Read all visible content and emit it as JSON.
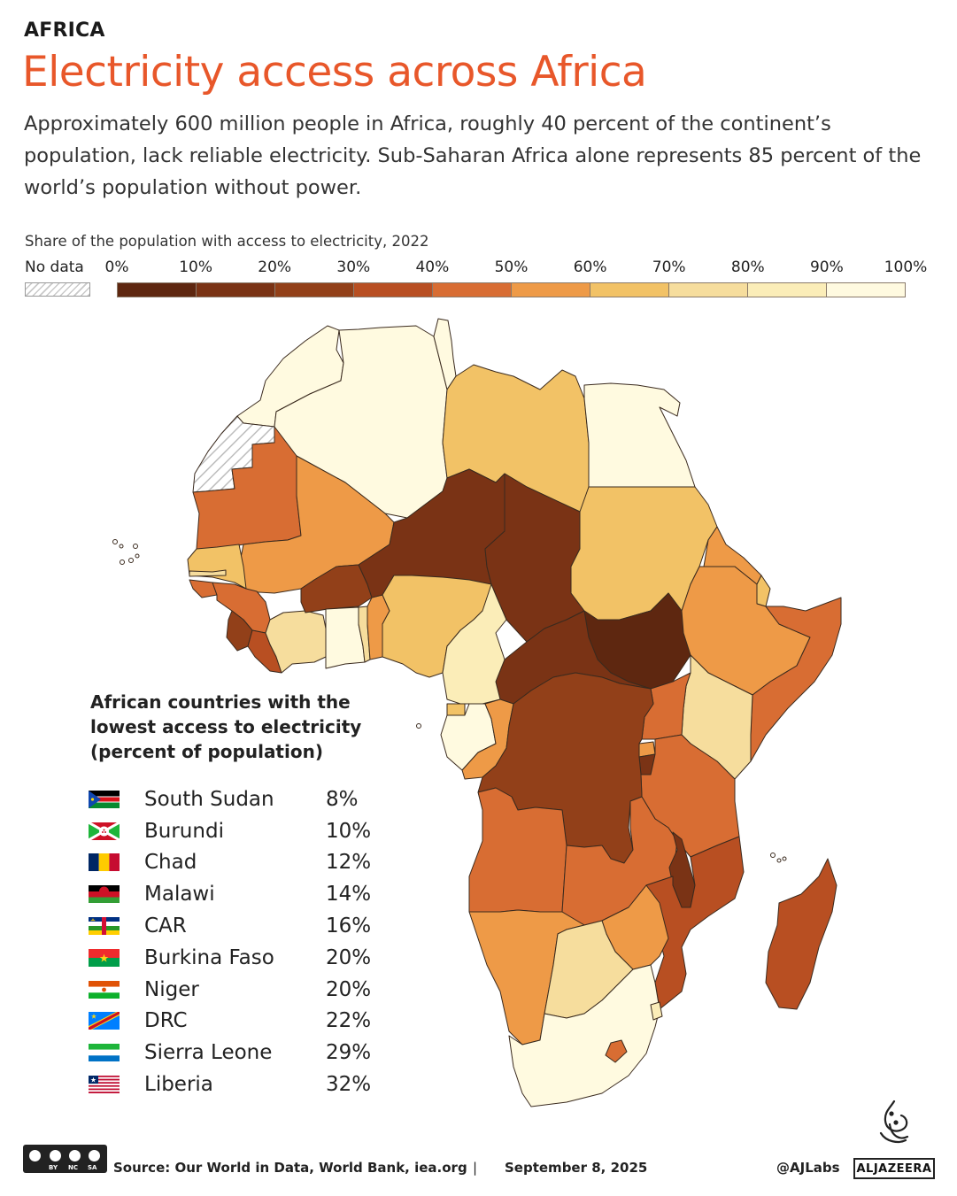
{
  "header": {
    "kicker": "AFRICA",
    "title": "Electricity access across Africa",
    "subtitle": "Approximately 600 million people in Africa, roughly 40 percent of the continent’s population, lack reliable electricity. Sub-Saharan Africa alone represents 85 percent of the world’s population without power."
  },
  "legend": {
    "title": "Share of the population with access to electricity, 2022",
    "no_data_label": "No data",
    "ticks": [
      "0%",
      "10%",
      "20%",
      "30%",
      "40%",
      "50%",
      "60%",
      "70%",
      "80%",
      "90%",
      "100%"
    ],
    "colors": [
      "#5e2710",
      "#7a3315",
      "#924019",
      "#b84f22",
      "#d86d33",
      "#ee9a47",
      "#f2c266",
      "#f6dd9d",
      "#fbedb8",
      "#fffae0"
    ]
  },
  "list": {
    "title": "African countries with the lowest access to electricity (percent of population)",
    "items": [
      {
        "country": "South Sudan",
        "value": "8%",
        "flag": "south-sudan"
      },
      {
        "country": "Burundi",
        "value": "10%",
        "flag": "burundi"
      },
      {
        "country": "Chad",
        "value": "12%",
        "flag": "chad"
      },
      {
        "country": "Malawi",
        "value": "14%",
        "flag": "malawi"
      },
      {
        "country": "CAR",
        "value": "16%",
        "flag": "car"
      },
      {
        "country": "Burkina Faso",
        "value": "20%",
        "flag": "burkina-faso"
      },
      {
        "country": "Niger",
        "value": "20%",
        "flag": "niger"
      },
      {
        "country": "DRC",
        "value": "22%",
        "flag": "drc"
      },
      {
        "country": "Sierra Leone",
        "value": "29%",
        "flag": "sierra-leone"
      },
      {
        "country": "Liberia",
        "value": "32%",
        "flag": "liberia"
      }
    ]
  },
  "footer": {
    "cc_labels": [
      "BY",
      "NC",
      "SA"
    ],
    "source": "Source:  Our World in Data, World Bank, iea.org",
    "separator": "|",
    "date": "September 8, 2025",
    "handle": "@AJLabs",
    "brand": "ALJAZEERA"
  }
}
